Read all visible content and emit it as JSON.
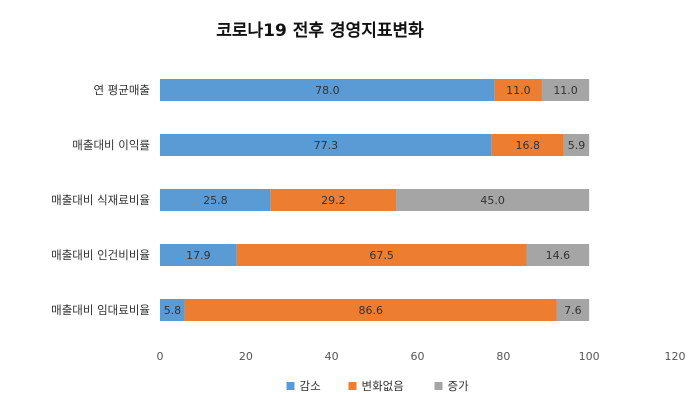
{
  "chart_data": {
    "type": "bar",
    "orientation": "horizontal",
    "stacked": true,
    "title": "코로나19 전후 경영지표변화",
    "categories": [
      "연 평균매출",
      "매출대비 이익률",
      "매출대비 식재료비율",
      "매출대비 인건비비율",
      "매출대비 임대료비율"
    ],
    "series": [
      {
        "name": "감소",
        "color": "#5B9BD5",
        "values": [
          78.0,
          77.3,
          25.8,
          17.9,
          5.8
        ]
      },
      {
        "name": "변화없음",
        "color": "#ED7D31",
        "values": [
          11.0,
          16.8,
          29.2,
          67.5,
          86.6
        ]
      },
      {
        "name": "증가",
        "color": "#A5A5A5",
        "values": [
          11.0,
          5.9,
          45.0,
          14.6,
          7.6
        ]
      }
    ],
    "data_labels": [
      [
        "78.0",
        "77.3",
        "25.8",
        "17.9",
        "5.8"
      ],
      [
        "11.0",
        "16.8",
        "29.2",
        "67.5",
        "86.6"
      ],
      [
        "11.0",
        "5.9",
        "45.0",
        "14.6",
        "7.6"
      ]
    ],
    "xlim": [
      0,
      120
    ],
    "xticks": [
      0,
      20,
      40,
      60,
      80,
      100,
      120
    ],
    "legend_position": "bottom",
    "grid": false
  }
}
